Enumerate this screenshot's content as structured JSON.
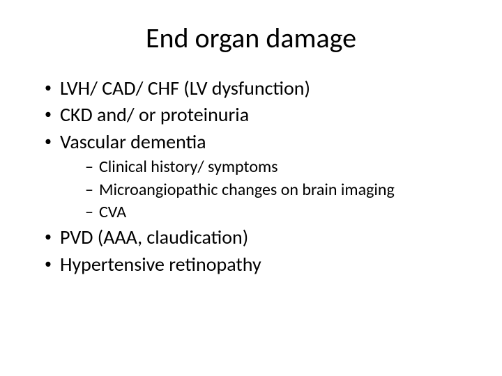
{
  "title": "End organ damage",
  "bullets": {
    "b1": "LVH/ CAD/ CHF (LV dysfunction)",
    "b2": "CKD and/ or proteinuria",
    "b3": "Vascular dementia",
    "b3_sub": {
      "s1": "Clinical history/ symptoms",
      "s2": "Microangiopathic changes on brain imaging",
      "s3": "CVA"
    },
    "b4": "PVD (AAA, claudication)",
    "b5": "Hypertensive retinopathy"
  },
  "style": {
    "background_color": "#ffffff",
    "text_color": "#000000",
    "title_fontsize": 40,
    "body_fontsize": 28,
    "sub_fontsize": 24,
    "font_family": "Calibri"
  }
}
